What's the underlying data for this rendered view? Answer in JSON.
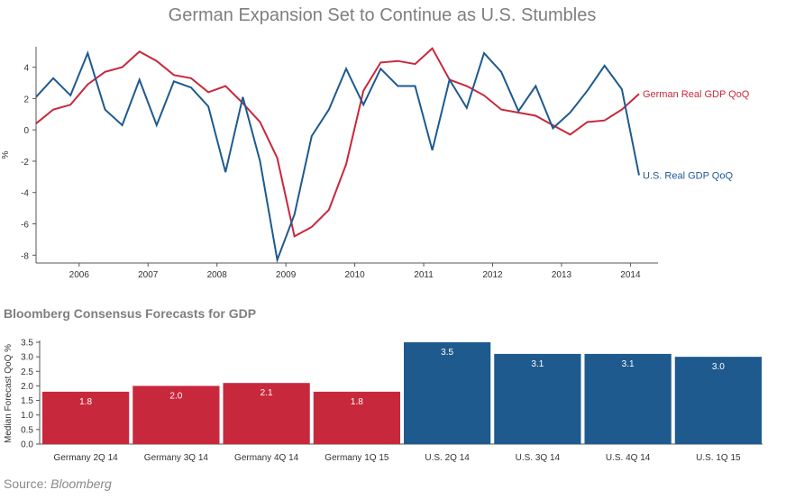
{
  "title": "German Expansion Set to Continue as U.S. Stumbles",
  "source": {
    "label": "Source:",
    "value": "Bloomberg"
  },
  "colors": {
    "germany": "#c8283c",
    "us": "#1f5a8e",
    "axis": "#555555",
    "title": "#7f7f7f"
  },
  "chart_data": [
    {
      "type": "line",
      "title": "German Expansion Set to Continue as U.S. Stumbles",
      "xlabel": "",
      "ylabel": "%",
      "ylim": [
        -8.5,
        5.3
      ],
      "yticks": [
        -8,
        -6,
        -4,
        -2,
        0,
        2,
        4
      ],
      "xticks": [
        2006,
        2007,
        2008,
        2009,
        2010,
        2011,
        2012,
        2013,
        2014
      ],
      "grid": false,
      "x": [
        2005.375,
        2005.625,
        2005.875,
        2006.125,
        2006.375,
        2006.625,
        2006.875,
        2007.125,
        2007.375,
        2007.625,
        2007.875,
        2008.125,
        2008.375,
        2008.625,
        2008.875,
        2009.125,
        2009.375,
        2009.625,
        2009.875,
        2010.125,
        2010.375,
        2010.625,
        2010.875,
        2011.125,
        2011.375,
        2011.625,
        2011.875,
        2012.125,
        2012.375,
        2012.625,
        2012.875,
        2013.125,
        2013.375,
        2013.625,
        2013.875,
        2014.125,
        2014.375
      ],
      "series": [
        {
          "name": "German Real GDP QoQ",
          "color": "#c8283c",
          "values": [
            0.4,
            1.3,
            1.6,
            2.9,
            3.7,
            4.0,
            5.0,
            4.4,
            3.5,
            3.3,
            2.4,
            2.8,
            1.7,
            0.5,
            -1.8,
            -6.8,
            -6.2,
            -5.1,
            -2.2,
            2.5,
            4.3,
            4.4,
            4.2,
            5.2,
            3.2,
            2.8,
            2.2,
            1.3,
            1.1,
            0.9,
            0.3,
            -0.3,
            0.5,
            0.6,
            1.3,
            2.3,
            null
          ],
          "end_label": "German Real GDP QoQ"
        },
        {
          "name": "U.S. Real GDP QoQ",
          "color": "#1f5a8e",
          "values": [
            2.1,
            3.3,
            2.2,
            4.9,
            1.3,
            0.3,
            3.2,
            0.3,
            3.1,
            2.7,
            1.5,
            -2.7,
            2.1,
            -2.0,
            -8.3,
            -5.4,
            -0.4,
            1.3,
            3.9,
            1.6,
            3.9,
            2.8,
            2.8,
            -1.3,
            3.2,
            1.4,
            4.9,
            3.7,
            1.2,
            2.8,
            0.1,
            1.1,
            2.5,
            4.1,
            2.6,
            -2.9,
            null
          ],
          "end_label": "U.S. Real GDP QoQ"
        }
      ]
    },
    {
      "type": "bar",
      "title": "Bloomberg Consensus Forecasts for GDP",
      "ylabel": "Median Forecast QoQ %",
      "ylim": [
        0,
        3.5
      ],
      "yticks": [
        "0.0",
        "0.5",
        "1.0",
        "1.5",
        "2.0",
        "2.5",
        "3.0",
        "3.5"
      ],
      "grid": false,
      "categories": [
        "Germany 2Q 14",
        "Germany 3Q 14",
        "Germany 4Q 14",
        "Germany 1Q 15",
        "U.S. 2Q 14",
        "U.S. 3Q 14",
        "U.S. 4Q 14",
        "U.S. 1Q 15"
      ],
      "values": [
        1.8,
        2.0,
        2.1,
        1.8,
        3.5,
        3.1,
        3.1,
        3.0
      ],
      "value_labels": [
        "1.8",
        "2.0",
        "2.1",
        "1.8",
        "3.5",
        "3.1",
        "3.1",
        "3.0"
      ],
      "bar_colors": [
        "#c8283c",
        "#c8283c",
        "#c8283c",
        "#c8283c",
        "#1f5a8e",
        "#1f5a8e",
        "#1f5a8e",
        "#1f5a8e"
      ]
    }
  ]
}
